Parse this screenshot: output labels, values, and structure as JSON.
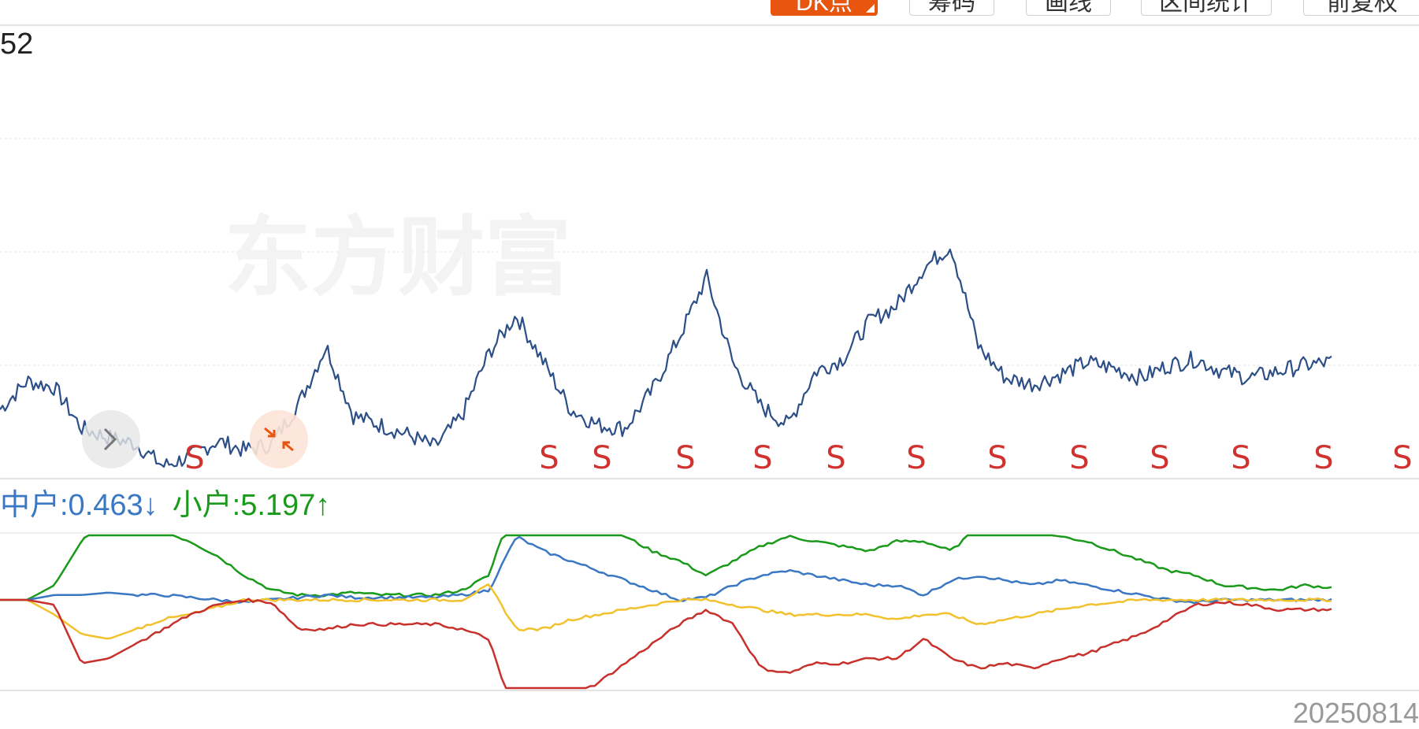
{
  "toolbar": {
    "buttons": [
      {
        "label": "DK点",
        "active": true
      },
      {
        "label": "筹码",
        "active": false
      },
      {
        "label": "画线",
        "active": false
      },
      {
        "label": "区间统计",
        "active": false
      },
      {
        "label": "前复权",
        "active": false
      }
    ]
  },
  "price_chart": {
    "top_label": "52",
    "watermark": "东方财富",
    "signal_label": "S",
    "signal_count": 13
  },
  "indicator": {
    "mid_text": "中户:0.463↓",
    "small_text": "小户:5.197↑"
  },
  "date_label": "20250814",
  "icons": [
    "chevron-right-icon",
    "collapse-arrows-icon"
  ],
  "colors": {
    "accent": "#e8550f",
    "price_line": "#2c4f88",
    "signal": "#d0332f",
    "series_green": "#1a9a1a",
    "series_blue": "#3a78c3",
    "series_yellow": "#f2c12e",
    "series_red": "#c8302c"
  },
  "chart_data": [
    {
      "type": "line",
      "series": [
        {
          "values": [
            2.0,
            2.9,
            2.7,
            1.4,
            1.1,
            0.9,
            0.2,
            0.5,
            1.0,
            0.7,
            0.9,
            2.2,
            4.0,
            1.8,
            1.5,
            1.2,
            0.8,
            1.8,
            3.8,
            5.0,
            3.5,
            2.0,
            1.5,
            1.4,
            2.6,
            4.3,
            6.2,
            3.4,
            2.1,
            1.5,
            3.2,
            3.6,
            4.8,
            5.3,
            6.5,
            7.2,
            4.0,
            3.0,
            2.8,
            3.1,
            3.5,
            3.3,
            3.0,
            3.4,
            3.6,
            3.2,
            3.0,
            3.2,
            3.4,
            3.5
          ]
        }
      ],
      "signals": [
        "S",
        "S",
        "S",
        "S",
        "S",
        "S",
        "S",
        "S",
        "S",
        "S",
        "S",
        "S",
        "S"
      ]
    },
    {
      "type": "line",
      "series": [
        {
          "color": "green",
          "values": [
            0,
            0,
            0.3,
            1.2,
            1.9,
            1.6,
            1.4,
            1.2,
            0.9,
            0.5,
            0.2,
            0.1,
            0.1,
            0.15,
            0.1,
            0.1,
            0.1,
            0.2,
            0.5,
            2.2,
            2.2,
            2.0,
            1.7,
            1.3,
            1.0,
            0.8,
            0.5,
            0.8,
            1.1,
            1.3,
            1.2,
            1.1,
            1.0,
            1.2,
            1.2,
            1.0,
            1.5,
            1.6,
            1.5,
            1.3,
            1.2,
            1.0,
            0.8,
            0.6,
            0.5,
            0.3,
            0.25,
            0.2,
            0.3,
            0.25
          ]
        },
        {
          "color": "blue",
          "values": [
            0,
            0,
            0.1,
            0.1,
            0.15,
            0.1,
            0.1,
            0.05,
            0.0,
            -0.05,
            0.0,
            0.05,
            0.1,
            0.05,
            0.05,
            0.05,
            0.05,
            0.1,
            0.2,
            1.3,
            1.0,
            0.8,
            0.6,
            0.4,
            0.2,
            0.0,
            0.05,
            0.3,
            0.5,
            0.6,
            0.5,
            0.4,
            0.3,
            0.3,
            0.1,
            0.4,
            0.5,
            0.4,
            0.3,
            0.4,
            0.3,
            0.2,
            0.1,
            0.0,
            -0.05,
            0.0,
            0.0,
            0.0,
            0.0,
            0.0
          ]
        },
        {
          "color": "yellow",
          "values": [
            0,
            0,
            -0.3,
            -0.7,
            -0.8,
            -0.6,
            -0.4,
            -0.3,
            -0.15,
            0.0,
            0.0,
            0.0,
            0.0,
            0.0,
            0.0,
            0.0,
            0.0,
            0.0,
            0.3,
            -0.6,
            -0.6,
            -0.4,
            -0.3,
            -0.2,
            -0.1,
            0.0,
            0.0,
            -0.1,
            -0.2,
            -0.3,
            -0.3,
            -0.3,
            -0.3,
            -0.4,
            -0.3,
            -0.3,
            -0.5,
            -0.4,
            -0.3,
            -0.2,
            -0.1,
            -0.05,
            0.0,
            0.0,
            0.0,
            0.0,
            0.0,
            0.0,
            0.0,
            0.0
          ]
        },
        {
          "color": "red",
          "values": [
            0,
            0,
            -0.1,
            -1.3,
            -1.2,
            -0.9,
            -0.6,
            -0.3,
            -0.1,
            0.0,
            -0.05,
            -0.6,
            -0.6,
            -0.5,
            -0.5,
            -0.5,
            -0.5,
            -0.6,
            -0.8,
            -2.6,
            -2.3,
            -2.0,
            -1.7,
            -1.3,
            -0.9,
            -0.5,
            -0.2,
            -0.5,
            -1.4,
            -1.5,
            -1.3,
            -1.3,
            -1.2,
            -1.2,
            -0.8,
            -1.2,
            -1.4,
            -1.3,
            -1.4,
            -1.2,
            -1.1,
            -0.9,
            -0.7,
            -0.4,
            -0.1,
            -0.05,
            -0.1,
            -0.2,
            -0.2,
            -0.2
          ]
        }
      ]
    }
  ]
}
